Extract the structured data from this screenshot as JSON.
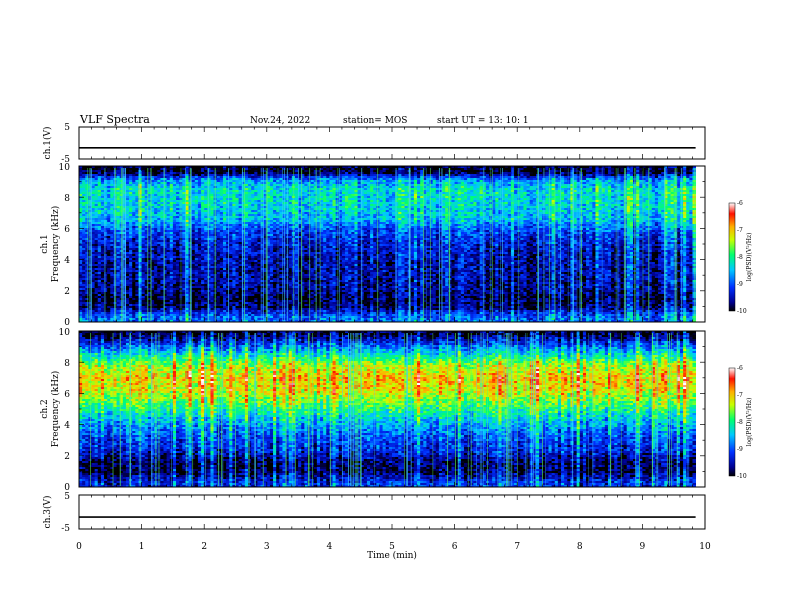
{
  "header": {
    "title": "VLF Spectra",
    "date": "Nov.24, 2022",
    "station": "station= MOS",
    "start": "start  UT =   13: 10: 1"
  },
  "chart_data": [
    {
      "type": "line",
      "panel": "ch1-waveform",
      "ylabel": "ch.1(V)",
      "xlim": [
        0,
        10
      ],
      "ylim": [
        -5,
        5
      ],
      "yticks": [
        "5",
        "-5"
      ],
      "series": [
        {
          "values": [
            -1.5,
            -1.5
          ]
        }
      ]
    },
    {
      "type": "heatmap",
      "panel": "ch1-spectrogram",
      "ylabel_lines": [
        "ch.1",
        "Frequency  (kHz)"
      ],
      "xlim": [
        0,
        10
      ],
      "ylim": [
        0,
        10
      ],
      "yticks": [
        "0",
        "2",
        "4",
        "6",
        "8",
        "10"
      ],
      "data_end_min": 9.85,
      "colorbar": {
        "label": "log(PSD)(V²/Hz)",
        "ticks": [
          "-6",
          "-7",
          "-8",
          "-9",
          "-10"
        ],
        "range": [
          -10,
          -6
        ]
      },
      "profile": [
        {
          "f": 0.3,
          "v": -8.9
        },
        {
          "f": 0.6,
          "v": -9.2
        },
        {
          "f": 0.9,
          "v": -9.7
        },
        {
          "f": 1.5,
          "v": -9.85
        },
        {
          "f": 2.2,
          "v": -9.6
        },
        {
          "f": 3.0,
          "v": -9.55
        },
        {
          "f": 4.0,
          "v": -9.5
        },
        {
          "f": 5.0,
          "v": -9.35
        },
        {
          "f": 5.8,
          "v": -9.1
        },
        {
          "f": 6.5,
          "v": -8.55
        },
        {
          "f": 7.5,
          "v": -8.35
        },
        {
          "f": 8.5,
          "v": -8.3
        },
        {
          "f": 9.1,
          "v": -8.7
        },
        {
          "f": 9.6,
          "v": -9.95
        }
      ]
    },
    {
      "type": "heatmap",
      "panel": "ch2-spectrogram",
      "ylabel_lines": [
        "ch.2",
        "Frequency  (kHz)"
      ],
      "xlim": [
        0,
        10
      ],
      "ylim": [
        0,
        10
      ],
      "yticks": [
        "0",
        "2",
        "4",
        "6",
        "8",
        "10"
      ],
      "data_end_min": 9.85,
      "colorbar": {
        "label": "log(PSD)(V²/Hz)",
        "ticks": [
          "-6",
          "-7",
          "-8",
          "-9",
          "-10"
        ],
        "range": [
          -10,
          -6
        ]
      },
      "profile": [
        {
          "f": 0.3,
          "v": -9.2
        },
        {
          "f": 0.6,
          "v": -9.5
        },
        {
          "f": 1.0,
          "v": -9.85
        },
        {
          "f": 1.6,
          "v": -9.8
        },
        {
          "f": 2.3,
          "v": -9.3
        },
        {
          "f": 3.2,
          "v": -9.05
        },
        {
          "f": 4.2,
          "v": -8.55
        },
        {
          "f": 5.2,
          "v": -7.85
        },
        {
          "f": 6.2,
          "v": -7.2
        },
        {
          "f": 7.0,
          "v": -7.05
        },
        {
          "f": 7.8,
          "v": -7.45
        },
        {
          "f": 8.6,
          "v": -8.4
        },
        {
          "f": 9.3,
          "v": -9.3
        },
        {
          "f": 9.8,
          "v": -9.9
        }
      ]
    },
    {
      "type": "line",
      "panel": "ch3-waveform",
      "ylabel": "ch.3(V)",
      "xlim": [
        0,
        10
      ],
      "ylim": [
        -5,
        5
      ],
      "yticks": [
        "5",
        "-5"
      ],
      "series": [
        {
          "values": [
            -1.5,
            -1.5
          ]
        }
      ]
    }
  ],
  "xaxis": {
    "label": "Time  (min)",
    "ticks": [
      "0",
      "1",
      "2",
      "3",
      "4",
      "5",
      "6",
      "7",
      "8",
      "9",
      "10"
    ]
  }
}
